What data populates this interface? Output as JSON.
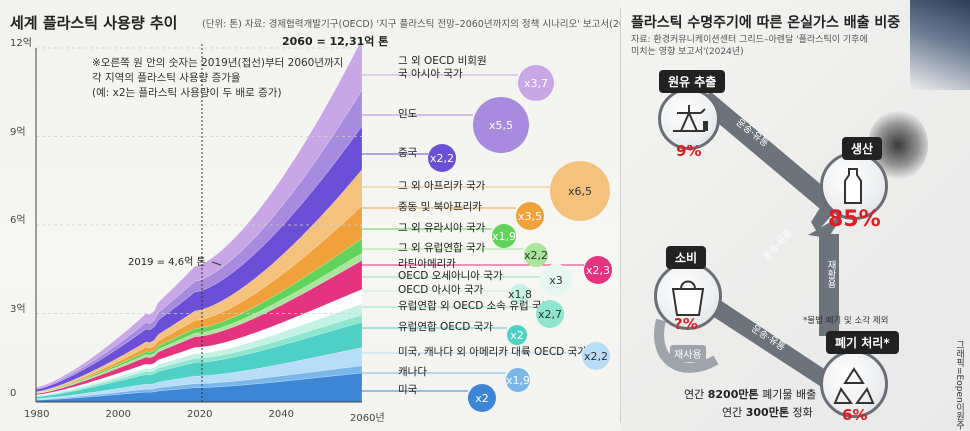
{
  "left": {
    "title": "세계 플라스틱 사용량 추이",
    "subtitle": "(단위: 톤) 자료: 경제협력개발기구(OECD) '지구 플라스틱 전망–2060년까지의 정책 시나리오' 보고서(2022년)",
    "note": [
      "※오른쪽 원 안의 숫자는 2019년(접선)부터 2060년까지",
      "각 지역의 플라스틱 사용량 증가율",
      "(예: x2는 플라스틱 사용량이 두 배로 증가)"
    ],
    "annotation_2060": "2060 = 12,31억 톤",
    "annotation_2019": "2019 = 4,6억 톤",
    "last_tick_label": "2060년"
  },
  "chart_data": {
    "type": "area",
    "title": "세계 플라스틱 사용량 추이",
    "xlim": [
      1980,
      2060
    ],
    "ylim": [
      0,
      12
    ],
    "y_unit": "억 톤",
    "y_ticks": [
      "0",
      "3억",
      "6억",
      "9억",
      "12억"
    ],
    "x_ticks": [
      "1980",
      "2000",
      "2020",
      "2040",
      "2060년"
    ],
    "totals": [
      {
        "x": 2019,
        "y": 4.6
      },
      {
        "x": 2060,
        "y": 12.31
      }
    ],
    "regions": [
      {
        "name": "그 외 OECD 비회원국 아시아 국가",
        "growth": "x3,7",
        "color": "#c9a6e6"
      },
      {
        "name": "인도",
        "growth": "x5,5",
        "color": "#a78bdf"
      },
      {
        "name": "중국",
        "growth": "x2,2",
        "color": "#6b4fd6"
      },
      {
        "name": "그 외 아프리카 국가",
        "growth": "x6,5",
        "color": "#f5c27e"
      },
      {
        "name": "중동 및 북아프리카",
        "growth": "x3,5",
        "color": "#f0a13a"
      },
      {
        "name": "그 외 유라시아 국가",
        "growth": "x1,9",
        "color": "#5fd35a"
      },
      {
        "name": "그 외 유럽연합 국가",
        "growth": "x2,2",
        "color": "#a9e59a"
      },
      {
        "name": "라틴아메리카",
        "growth": "x2,3",
        "color": "#e5337f"
      },
      {
        "name": "OECD 오세아니아 국가",
        "growth": "x3",
        "color": "#ffffff"
      },
      {
        "name": "OECD 아시아 국가",
        "growth": "x1,8",
        "color": "#c4f2e4"
      },
      {
        "name": "유럽연합 외 OECD 소속 유럽 국가",
        "growth": "x2,7",
        "color": "#8ee6cf"
      },
      {
        "name": "유럽연합 OECD 국가",
        "growth": "x2",
        "color": "#4fd0c4"
      },
      {
        "name": "미국, 캐나다 외 아메리카 대륙 OECD 국가",
        "growth": "x2,2",
        "color": "#b8ddf6"
      },
      {
        "name": "캐나다",
        "growth": "x1,9",
        "color": "#79b7ea"
      },
      {
        "name": "미국",
        "growth": "x2",
        "color": "#3d86d6"
      }
    ]
  },
  "right": {
    "title": "플라스틱 수명주기에 따른 온실가스 배출 비중",
    "source_lines": [
      "자료: 환경커뮤니케이션센터 그리드–아렌달 '플라스틱이 기후에",
      "미치는 영향 보고서'(2024년)"
    ],
    "stages": [
      {
        "label": "원유 추출",
        "pct": "9%"
      },
      {
        "label": "생산",
        "pct": "85%"
      },
      {
        "label": "소비",
        "pct": "?%"
      },
      {
        "label": "폐기 처리*",
        "pct": "6%"
      }
    ],
    "arrows": {
      "transport1": "운송·유통",
      "transport2": "운송·유통",
      "transport3": "운송·유통",
      "recycle": "재활용",
      "reuse": "재사용"
    },
    "footnote": "*불법 폐기 및 소각 제외",
    "summary": {
      "line1_pre": "연간 ",
      "line1_num": "8200만톤",
      "line1_post": " 폐기물 배출",
      "line2_pre": "연간 ",
      "line2_num": "300만톤",
      "line2_post": " 정화"
    },
    "credit": "그래픽=Eopen이원주"
  }
}
